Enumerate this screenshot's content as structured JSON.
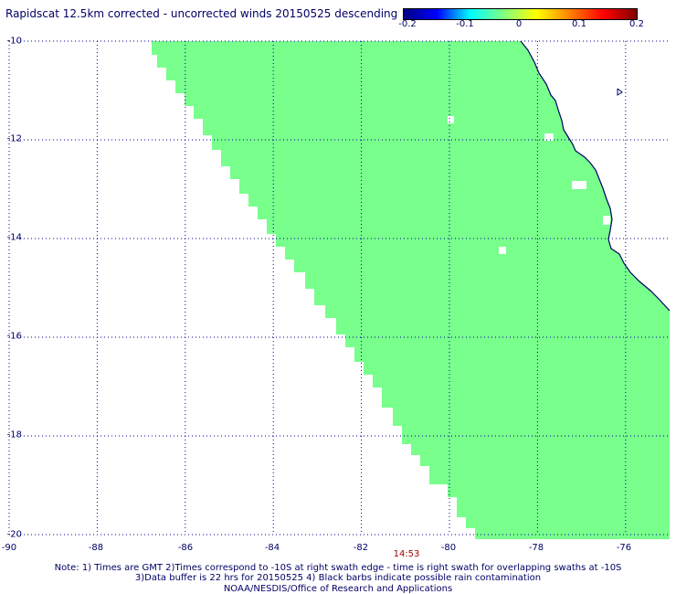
{
  "title": "Rapidscat 12.5km corrected - uncorrected winds 20150525 descending",
  "colorbar": {
    "min": -0.2,
    "max": 0.2,
    "tick_labels": [
      "-0.2",
      "-0.1",
      "0",
      "0.1",
      "0.2"
    ],
    "colors": [
      "#000080",
      "#0000ff",
      "#00ffff",
      "#80ff80",
      "#ffff00",
      "#ff8000",
      "#ff0000",
      "#800000"
    ]
  },
  "map": {
    "lon_range": [
      -90,
      -75
    ],
    "lat_range": [
      -20,
      -10
    ],
    "lat_labels": [
      "-10",
      "-12",
      "-14",
      "-16",
      "-18",
      "-20"
    ],
    "lon_labels": [
      "-90",
      "-88",
      "-86",
      "-84",
      "-82",
      "-80",
      "-78",
      "-76"
    ],
    "swath_color": "#78ff8c",
    "swath_value": 0,
    "grid_color": "#000099",
    "coast_color": "#000066"
  },
  "time_label": "14:53",
  "notes": [
    "Note: 1) Times are GMT 2)Times correspond to -10S at right swath edge - time is right swath for overlapping swaths at -10S",
    "3)Data buffer is 22 hrs for 20150525 4) Black barbs indicate possible rain contamination",
    "NOAA/NESDIS/Office of Research and Applications"
  ]
}
